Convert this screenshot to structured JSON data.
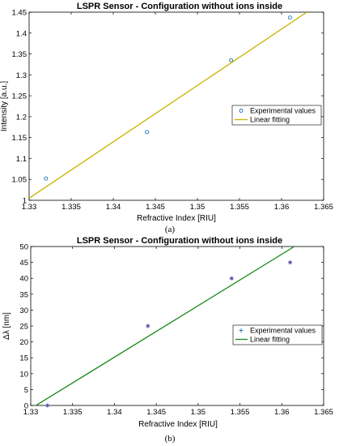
{
  "chart_data": [
    {
      "type": "scatter",
      "title": "LSPR Sensor - Configuration without ions inside",
      "xlabel": "Refractive Index [RIU]",
      "ylabel": "Intensity [a.u.]",
      "caption": "(a)",
      "xlim": [
        1.33,
        1.365
      ],
      "ylim": [
        1.0,
        1.45
      ],
      "x_ticks": [
        "1.33",
        "1.335",
        "1.34",
        "1.345",
        "1.35",
        "1.355",
        "1.36",
        "1.365"
      ],
      "y_ticks": [
        "1",
        "1.05",
        "1.1",
        "1.15",
        "1.2",
        "1.25",
        "1.3",
        "1.35",
        "1.4",
        "1.45"
      ],
      "legend_position": "right",
      "series": [
        {
          "name": "Experimental values",
          "kind": "points",
          "marker": "circle",
          "color": "#1f6fb5",
          "x": [
            1.332,
            1.344,
            1.354,
            1.361
          ],
          "y": [
            1.052,
            1.163,
            1.335,
            1.437
          ]
        },
        {
          "name": "Linear fitting",
          "kind": "line",
          "color": "#c8b400",
          "x": [
            1.33,
            1.363
          ],
          "y": [
            1.005,
            1.45
          ]
        }
      ]
    },
    {
      "type": "scatter",
      "title": "LSPR Sensor - Configuration without ions inside",
      "xlabel": "Refractive Index [RIU]",
      "ylabel": "Δλ [nm]",
      "caption": "(b)",
      "xlim": [
        1.33,
        1.365
      ],
      "ylim": [
        0,
        50
      ],
      "x_ticks": [
        "1.33",
        "1.335",
        "1.34",
        "1.345",
        "1.35",
        "1.355",
        "1.36",
        "1.365"
      ],
      "y_ticks": [
        "0",
        "5",
        "10",
        "15",
        "20",
        "25",
        "30",
        "35",
        "40",
        "45",
        "50"
      ],
      "legend_position": "right",
      "series": [
        {
          "name": "Experimental values",
          "kind": "points",
          "marker": "star",
          "color": "#1f6fb5",
          "x": [
            1.332,
            1.344,
            1.354,
            1.361
          ],
          "y": [
            0,
            25,
            40,
            45
          ]
        },
        {
          "name": "Linear fitting",
          "kind": "line",
          "color": "#1a8a1a",
          "x": [
            1.33,
            1.3615
          ],
          "y": [
            -1,
            50
          ]
        }
      ]
    }
  ]
}
